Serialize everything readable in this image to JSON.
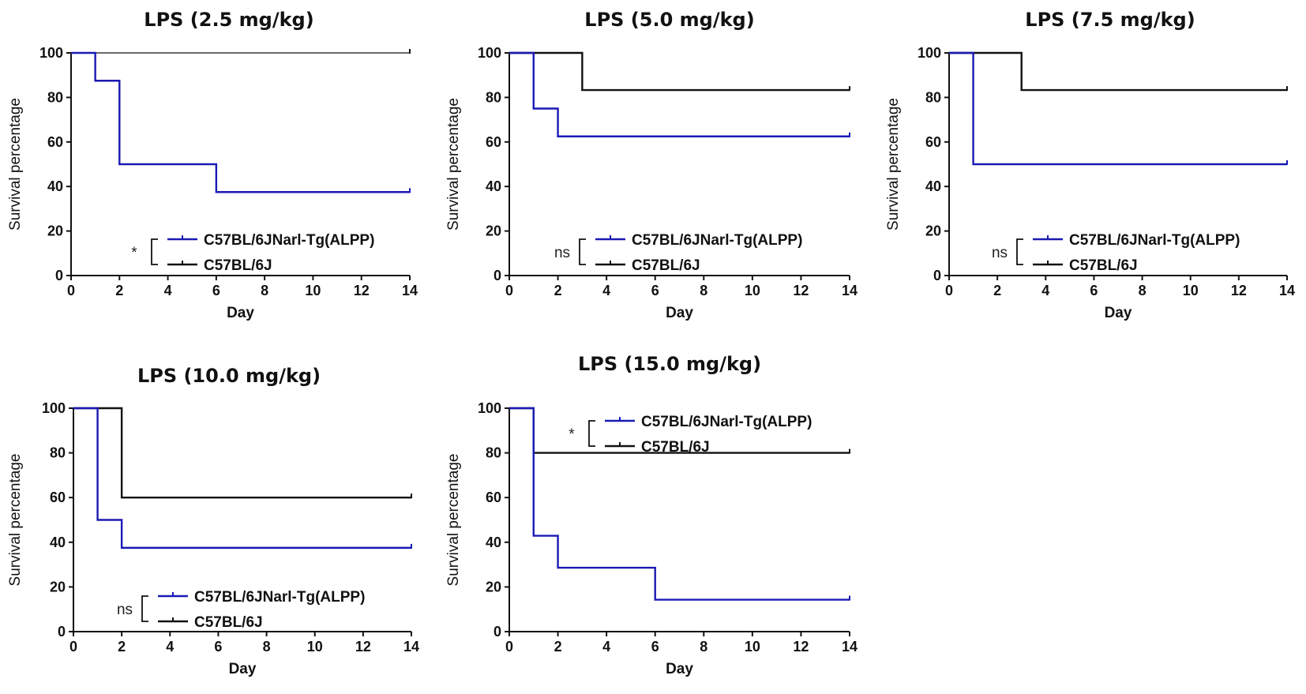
{
  "figure": {
    "chart_data": [
      {
        "type": "line",
        "subtype": "kaplan-meier-step",
        "title": "LPS (2.5 mg/kg)",
        "xlabel": "Day",
        "ylabel": "Survival percentage",
        "xlim": [
          0,
          14
        ],
        "ylim": [
          0,
          100
        ],
        "xticks": [
          0,
          2,
          4,
          6,
          8,
          10,
          12,
          14
        ],
        "yticks": [
          0,
          20,
          40,
          60,
          80,
          100
        ],
        "significance": "*",
        "series": [
          {
            "name": "C57BL/6JNarl-Tg(ALPP)",
            "color": "#1a1ab4",
            "x": [
              0,
              1,
              2,
              6,
              14
            ],
            "y": [
              100,
              87.5,
              50,
              37.5,
              37.5
            ]
          },
          {
            "name": "C57BL/6J",
            "color": "#111111",
            "x": [
              0,
              14
            ],
            "y": [
              100,
              100
            ]
          }
        ]
      },
      {
        "type": "line",
        "subtype": "kaplan-meier-step",
        "title": "LPS (5.0 mg/kg)",
        "xlabel": "Day",
        "ylabel": "Survival percentage",
        "xlim": [
          0,
          14
        ],
        "ylim": [
          0,
          100
        ],
        "xticks": [
          0,
          2,
          4,
          6,
          8,
          10,
          12,
          14
        ],
        "yticks": [
          0,
          20,
          40,
          60,
          80,
          100
        ],
        "significance": "ns",
        "series": [
          {
            "name": "C57BL/6JNarl-Tg(ALPP)",
            "color": "#1a1ab4",
            "x": [
              0,
              1,
              2,
              14
            ],
            "y": [
              100,
              75,
              62.5,
              62.5
            ]
          },
          {
            "name": "C57BL/6J",
            "color": "#111111",
            "x": [
              0,
              3,
              14
            ],
            "y": [
              100,
              83.3,
              83.3
            ]
          }
        ]
      },
      {
        "type": "line",
        "subtype": "kaplan-meier-step",
        "title": "LPS (7.5 mg/kg)",
        "xlabel": "Day",
        "ylabel": "Survival percentage",
        "xlim": [
          0,
          14
        ],
        "ylim": [
          0,
          100
        ],
        "xticks": [
          0,
          2,
          4,
          6,
          8,
          10,
          12,
          14
        ],
        "yticks": [
          0,
          20,
          40,
          60,
          80,
          100
        ],
        "significance": "ns",
        "series": [
          {
            "name": "C57BL/6JNarl-Tg(ALPP)",
            "color": "#1a1ab4",
            "x": [
              0,
              1,
              14
            ],
            "y": [
              100,
              50,
              50
            ]
          },
          {
            "name": "C57BL/6J",
            "color": "#111111",
            "x": [
              0,
              3,
              14
            ],
            "y": [
              100,
              83.3,
              83.3
            ]
          }
        ]
      },
      {
        "type": "line",
        "subtype": "kaplan-meier-step",
        "title": "LPS (10.0 mg/kg)",
        "xlabel": "Day",
        "ylabel": "Survival percentage",
        "xlim": [
          0,
          14
        ],
        "ylim": [
          0,
          100
        ],
        "xticks": [
          0,
          2,
          4,
          6,
          8,
          10,
          12,
          14
        ],
        "yticks": [
          0,
          20,
          40,
          60,
          80,
          100
        ],
        "significance": "ns",
        "series": [
          {
            "name": "C57BL/6JNarl-Tg(ALPP)",
            "color": "#1a1ab4",
            "x": [
              0,
              1,
              2,
              14
            ],
            "y": [
              100,
              50,
              37.5,
              37.5
            ]
          },
          {
            "name": "C57BL/6J",
            "color": "#111111",
            "x": [
              0,
              2,
              14
            ],
            "y": [
              100,
              60,
              60
            ]
          }
        ]
      },
      {
        "type": "line",
        "subtype": "kaplan-meier-step",
        "title": "LPS (15.0 mg/kg)",
        "xlabel": "Day",
        "ylabel": "Survival percentage",
        "xlim": [
          0,
          14
        ],
        "ylim": [
          0,
          100
        ],
        "xticks": [
          0,
          2,
          4,
          6,
          8,
          10,
          12,
          14
        ],
        "yticks": [
          0,
          20,
          40,
          60,
          80,
          100
        ],
        "significance": "*",
        "series": [
          {
            "name": "C57BL/6JNarl-Tg(ALPP)",
            "color": "#1a1ab4",
            "x": [
              0,
              1,
              2,
              6,
              14
            ],
            "y": [
              100,
              42.9,
              28.6,
              14.3,
              14.3
            ]
          },
          {
            "name": "C57BL/6J",
            "color": "#111111",
            "x": [
              0,
              1,
              14
            ],
            "y": [
              100,
              80,
              80
            ]
          }
        ]
      }
    ]
  }
}
